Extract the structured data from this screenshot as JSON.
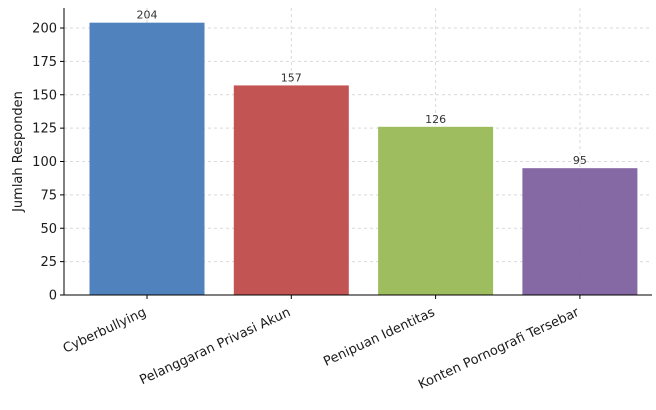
{
  "chart_data": {
    "type": "bar",
    "title": "",
    "xlabel": "",
    "ylabel": "Jumlah Responden",
    "categories": [
      "Cyberbullying",
      "Pelanggaran Privasi Akun",
      "Penipuan Identitas",
      "Konten Pornografi Tersebar"
    ],
    "values": [
      204,
      157,
      126,
      95
    ],
    "data_labels": [
      "204",
      "157",
      "126",
      "95"
    ],
    "colors": [
      "#4a7ebb",
      "#c0504d",
      "#9bbb59",
      "#8064a2"
    ],
    "ylim": [
      0,
      215
    ],
    "yticks": [
      0,
      25,
      50,
      75,
      100,
      125,
      150,
      175,
      200
    ],
    "grid": true,
    "legend": "none"
  }
}
